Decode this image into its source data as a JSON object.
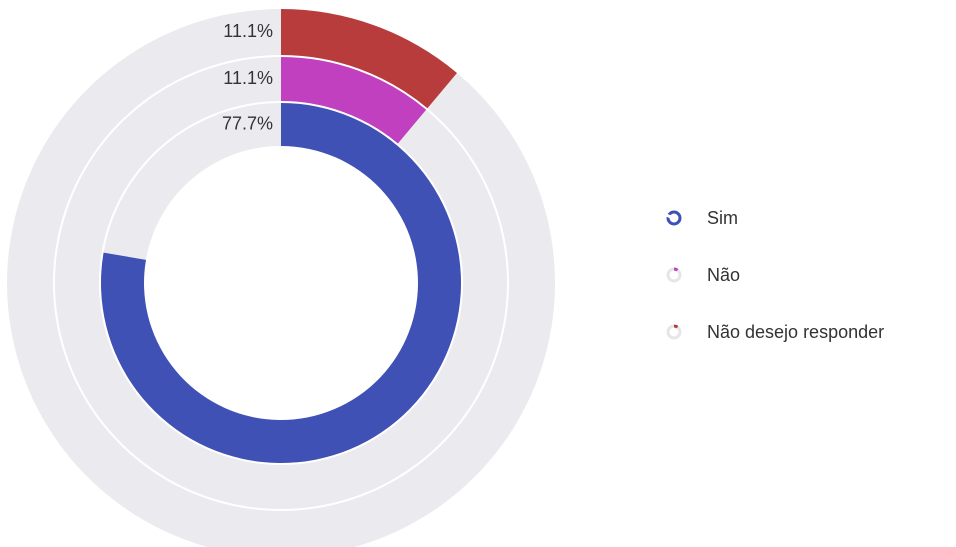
{
  "chart_data": {
    "type": "radial_bar",
    "categories": [
      "Sim",
      "Não",
      "Não desejo responder"
    ],
    "values": [
      77.7,
      11.1,
      11.1
    ],
    "value_labels": [
      "77.7%",
      "11.1%",
      "11.1%"
    ],
    "colors": [
      "#3f51b5",
      "#c040c0",
      "#b83c3c"
    ],
    "track_color": "#ebebef",
    "ylim": [
      0,
      100
    ],
    "legend": "right"
  }
}
